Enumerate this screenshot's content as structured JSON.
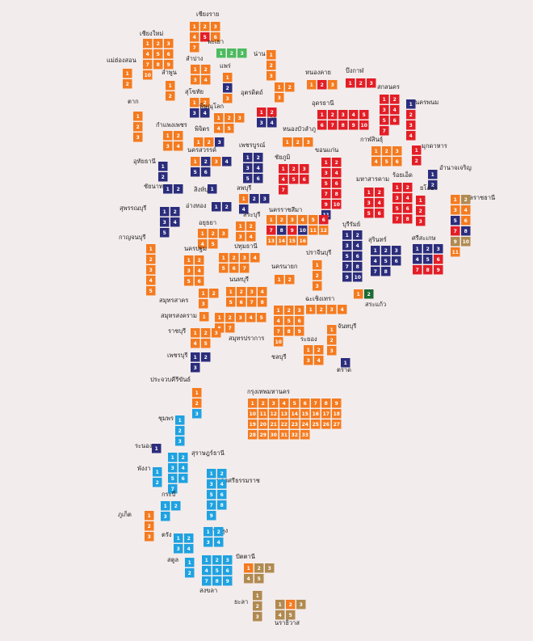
{
  "provinces": [
    {
      "name": "เชียงราย",
      "seats": [
        1,
        2,
        3,
        4,
        5,
        6,
        7
      ],
      "colors": [
        "#f47b20",
        "#f47b20",
        "#f47b20",
        "#f47b20",
        "#e31e26",
        "#f47b20",
        "#f47b20"
      ]
    },
    {
      "name": "พะเยา",
      "seats": [
        1,
        2,
        3
      ],
      "colors": [
        "#4cbb5f",
        "#4cbb5f",
        "#4cbb5f"
      ]
    },
    {
      "name": "น่าน",
      "seats": [
        1,
        2,
        3
      ],
      "colors": [
        "#f47b20",
        "#f47b20",
        "#f47b20"
      ]
    },
    {
      "name": "เชียงใหม่",
      "seats": [
        1,
        2,
        3,
        4,
        5,
        6,
        7,
        8,
        9,
        10
      ],
      "colors": [
        "#f47b20",
        "#f47b20",
        "#f47b20",
        "#f47b20",
        "#f47b20",
        "#f47b20",
        "#f47b20",
        "#f47b20",
        "#f47b20",
        "#f47b20"
      ]
    },
    {
      "name": "แม่ฮ่องสอน",
      "seats": [
        1,
        2
      ],
      "colors": [
        "#f47b20",
        "#f47b20"
      ]
    },
    {
      "name": "ลำพูน",
      "seats": [
        1,
        2
      ],
      "colors": [
        "#f47b20",
        "#f47b20"
      ]
    },
    {
      "name": "ลำปาง",
      "seats": [
        1,
        2,
        3,
        4
      ],
      "colors": [
        "#f47b20",
        "#f47b20",
        "#f47b20",
        "#f47b20"
      ]
    },
    {
      "name": "แพร่",
      "seats": [
        1,
        2,
        3
      ],
      "colors": [
        "#f47b20",
        "#2b2d7c",
        "#f47b20"
      ]
    },
    {
      "name": "สุโขทัย",
      "seats": [
        1,
        2,
        3,
        4
      ],
      "colors": [
        "#f47b20",
        "#f47b20",
        "#2b2d7c",
        "#2b2d7c"
      ]
    },
    {
      "name": "อุตรดิตถ์",
      "seats": [
        1,
        2,
        3
      ],
      "colors": [
        "#f47b20",
        "#f47b20",
        "#f47b20"
      ]
    },
    {
      "name": "ตาก",
      "seats": [
        1,
        2,
        3
      ],
      "colors": [
        "#f47b20",
        "#f47b20",
        "#f47b20"
      ]
    },
    {
      "name": "พิษณุโลก",
      "seats": [
        1,
        2,
        3,
        4,
        5
      ],
      "colors": [
        "#f47b20",
        "#f47b20",
        "#f47b20",
        "#f47b20",
        "#f47b20"
      ]
    },
    {
      "name": "เลย",
      "seats": [
        1,
        2,
        3,
        4
      ],
      "colors": [
        "#e31e26",
        "#e31e26",
        "#2b2d7c",
        "#2b2d7c"
      ]
    },
    {
      "name": "กำแพงเพชร",
      "seats": [
        1,
        2,
        3,
        4
      ],
      "colors": [
        "#f47b20",
        "#f47b20",
        "#f47b20",
        "#f47b20"
      ]
    },
    {
      "name": "พิจิตร",
      "seats": [
        1,
        2,
        3
      ],
      "colors": [
        "#f47b20",
        "#f47b20",
        "#2b2d7c"
      ]
    },
    {
      "name": "หนองคาย",
      "seats": [
        1,
        2,
        3
      ],
      "colors": [
        "#f47b20",
        "#e31e26",
        "#f47b20"
      ]
    },
    {
      "name": "บึงกาฬ",
      "seats": [
        1,
        2,
        3
      ],
      "colors": [
        "#e31e26",
        "#e31e26",
        "#e31e26"
      ]
    },
    {
      "name": "อุดรธานี",
      "seats": [
        1,
        2,
        3,
        4,
        5,
        6,
        7,
        8,
        9,
        10
      ],
      "colors": [
        "#e31e26",
        "#e31e26",
        "#e31e26",
        "#e31e26",
        "#e31e26",
        "#e31e26",
        "#e31e26",
        "#e31e26",
        "#e31e26",
        "#e31e26"
      ]
    },
    {
      "name": "สกลนคร",
      "seats": [
        1,
        2,
        3,
        4,
        5,
        6,
        7
      ],
      "colors": [
        "#e31e26",
        "#e31e26",
        "#e31e26",
        "#e31e26",
        "#e31e26",
        "#e31e26",
        "#e31e26"
      ]
    },
    {
      "name": "นครพนม",
      "seats": [
        1,
        2,
        3,
        4
      ],
      "colors": [
        "#2b2d7c",
        "#e31e26",
        "#e31e26",
        "#e31e26"
      ]
    },
    {
      "name": "หนองบัวลำภู",
      "seats": [
        1,
        2,
        3
      ],
      "colors": [
        "#f47b20",
        "#f47b20",
        "#f47b20"
      ]
    },
    {
      "name": "เพชรบูรณ์",
      "seats": [
        1,
        2,
        3,
        4,
        5,
        6
      ],
      "colors": [
        "#2b2d7c",
        "#2b2d7c",
        "#2b2d7c",
        "#2b2d7c",
        "#2b2d7c",
        "#2b2d7c"
      ]
    },
    {
      "name": "ชัยภูมิ",
      "seats": [
        1,
        2,
        3,
        4,
        5,
        6,
        7
      ],
      "colors": [
        "#e31e26",
        "#e31e26",
        "#e31e26",
        "#e31e26",
        "#e31e26",
        "#e31e26",
        "#e31e26"
      ]
    },
    {
      "name": "ขอนแก่น",
      "seats": [
        1,
        2,
        3,
        4,
        5,
        6,
        7,
        8,
        9,
        10,
        11
      ],
      "colors": [
        "#e31e26",
        "#e31e26",
        "#e31e26",
        "#e31e26",
        "#e31e26",
        "#e31e26",
        "#e31e26",
        "#e31e26",
        "#e31e26",
        "#e31e26",
        "#2b2d7c"
      ]
    },
    {
      "name": "กาฬสินธุ์",
      "seats": [
        1,
        2,
        3,
        4,
        5,
        6
      ],
      "colors": [
        "#f47b20",
        "#f47b20",
        "#f47b20",
        "#f47b20",
        "#f47b20",
        "#f47b20"
      ]
    },
    {
      "name": "มุกดาหาร",
      "seats": [
        1,
        2
      ],
      "colors": [
        "#e31e26",
        "#e31e26"
      ]
    },
    {
      "name": "อำนาจเจริญ",
      "seats": [
        1,
        2
      ],
      "colors": [
        "#2b2d7c",
        "#2b2d7c"
      ]
    },
    {
      "name": "ร้อยเอ็ด",
      "seats": [
        1,
        2,
        3,
        4,
        5,
        6,
        7,
        8
      ],
      "colors": [
        "#e31e26",
        "#e31e26",
        "#e31e26",
        "#e31e26",
        "#e31e26",
        "#e31e26",
        "#e31e26",
        "#e31e26"
      ]
    },
    {
      "name": "มหาสารคาม",
      "seats": [
        1,
        2,
        3,
        4,
        5,
        6
      ],
      "colors": [
        "#e31e26",
        "#e31e26",
        "#e31e26",
        "#e31e26",
        "#e31e26",
        "#e31e26"
      ]
    },
    {
      "name": "ยโสธร",
      "seats": [
        1,
        2,
        3
      ],
      "colors": [
        "#e31e26",
        "#e31e26",
        "#e31e26"
      ]
    },
    {
      "name": "อุบลราชธานี",
      "seats": [
        1,
        2,
        3,
        4,
        5,
        6,
        7,
        8,
        9,
        10,
        11
      ],
      "colors": [
        "#f47b20",
        "#b08a50",
        "#f47b20",
        "#f47b20",
        "#2b2d7c",
        "#f47b20",
        "#e31e26",
        "#2b2d7c",
        "#b08a50",
        "#b08a50",
        "#f47b20"
      ]
    },
    {
      "name": "อุทัยธานี",
      "seats": [
        1,
        2
      ],
      "colors": [
        "#2b2d7c",
        "#2b2d7c"
      ]
    },
    {
      "name": "นครสวรรค์",
      "seats": [
        1,
        2,
        3,
        4,
        5,
        6
      ],
      "colors": [
        "#f47b20",
        "#2b2d7c",
        "#f47b20",
        "#2b2d7c",
        "#2b2d7c",
        "#2b2d7c"
      ]
    },
    {
      "name": "ชัยนาท",
      "seats": [
        1,
        2
      ],
      "colors": [
        "#2b2d7c",
        "#2b2d7c"
      ]
    },
    {
      "name": "สิงห์บุรี",
      "seats": [
        1
      ],
      "colors": [
        "#2b2d7c"
      ]
    },
    {
      "name": "ลพบุรี",
      "seats": [
        1,
        2,
        3,
        4
      ],
      "colors": [
        "#f47b20",
        "#2b2d7c",
        "#2b2d7c",
        "#2b2d7c"
      ]
    },
    {
      "name": "อ่างทอง",
      "seats": [
        1,
        2
      ],
      "colors": [
        "#2b2d7c",
        "#2b2d7c"
      ]
    },
    {
      "name": "สุพรรณบุรี",
      "seats": [
        1,
        2,
        3,
        4,
        5
      ],
      "colors": [
        "#2b2d7c",
        "#2b2d7c",
        "#2b2d7c",
        "#2b2d7c",
        "#2b2d7c"
      ]
    },
    {
      "name": "กาญจนบุรี",
      "seats": [
        1,
        2,
        3,
        4,
        5
      ],
      "colors": [
        "#f47b20",
        "#f47b20",
        "#f47b20",
        "#f47b20",
        "#f47b20"
      ]
    },
    {
      "name": "อยุธยา",
      "seats": [
        1,
        2,
        3,
        4,
        5
      ],
      "colors": [
        "#f47b20",
        "#f47b20",
        "#f47b20",
        "#f47b20",
        "#f47b20"
      ]
    },
    {
      "name": "สระบุรี",
      "seats": [
        1,
        2,
        3,
        4
      ],
      "colors": [
        "#f47b20",
        "#f47b20",
        "#f47b20",
        "#f47b20"
      ]
    },
    {
      "name": "นครราชสีมา",
      "seats": [
        1,
        2,
        3,
        4,
        5,
        6,
        7,
        8,
        9,
        10,
        11,
        12,
        13,
        14,
        15,
        16
      ],
      "colors": [
        "#f47b20",
        "#f47b20",
        "#f47b20",
        "#f47b20",
        "#f47b20",
        "#e31e26",
        "#e31e26",
        "#2b2d7c",
        "#e31e26",
        "#2b2d7c",
        "#f47b20",
        "#f47b20",
        "#f47b20",
        "#f47b20",
        "#f47b20",
        "#f47b20"
      ]
    },
    {
      "name": "บุรีรัมย์",
      "seats": [
        1,
        2,
        3,
        4,
        5,
        6,
        7,
        8,
        9,
        10
      ],
      "colors": [
        "#2b2d7c",
        "#2b2d7c",
        "#2b2d7c",
        "#2b2d7c",
        "#2b2d7c",
        "#2b2d7c",
        "#2b2d7c",
        "#2b2d7c",
        "#2b2d7c",
        "#2b2d7c"
      ]
    },
    {
      "name": "สุรินทร์",
      "seats": [
        1,
        2,
        3,
        4,
        5,
        6,
        7,
        8
      ],
      "colors": [
        "#2b2d7c",
        "#2b2d7c",
        "#2b2d7c",
        "#2b2d7c",
        "#2b2d7c",
        "#2b2d7c",
        "#2b2d7c",
        "#2b2d7c"
      ]
    },
    {
      "name": "ศรีสะเกษ",
      "seats": [
        1,
        2,
        3,
        4,
        5,
        6,
        7,
        8,
        9
      ],
      "colors": [
        "#2b2d7c",
        "#2b2d7c",
        "#2b2d7c",
        "#2b2d7c",
        "#2b2d7c",
        "#e31e26",
        "#e31e26",
        "#e31e26",
        "#e31e26"
      ]
    },
    {
      "name": "นครปฐม",
      "seats": [
        1,
        2,
        3,
        4,
        5,
        6
      ],
      "colors": [
        "#f47b20",
        "#f47b20",
        "#f47b20",
        "#f47b20",
        "#f47b20",
        "#f47b20"
      ]
    },
    {
      "name": "ปทุมธานี",
      "seats": [
        1,
        2,
        3,
        4,
        5,
        6,
        7
      ],
      "colors": [
        "#f47b20",
        "#f47b20",
        "#f47b20",
        "#f47b20",
        "#f47b20",
        "#f47b20",
        "#f47b20"
      ]
    },
    {
      "name": "นนทบุรี",
      "seats": [
        1,
        2,
        3,
        4,
        5,
        6,
        7,
        8
      ],
      "colors": [
        "#f47b20",
        "#f47b20",
        "#f47b20",
        "#f47b20",
        "#f47b20",
        "#f47b20",
        "#f47b20",
        "#f47b20"
      ]
    },
    {
      "name": "นครนายก",
      "seats": [
        1,
        2
      ],
      "colors": [
        "#f47b20",
        "#f47b20"
      ]
    },
    {
      "name": "ปราจีนบุรี",
      "seats": [
        1,
        2,
        3
      ],
      "colors": [
        "#f47b20",
        "#f47b20",
        "#f47b20"
      ]
    },
    {
      "name": "สระแก้ว",
      "seats": [
        1,
        2
      ],
      "colors": [
        "#f47b20",
        "#1d6b35"
      ]
    },
    {
      "name": "สมุทรสาคร",
      "seats": [
        1,
        2,
        3
      ],
      "colors": [
        "#f47b20",
        "#f47b20",
        "#f47b20"
      ]
    },
    {
      "name": "สมุทรสงคราม",
      "seats": [
        1
      ],
      "colors": [
        "#f47b20"
      ]
    },
    {
      "name": "สมุทรปราการ",
      "seats": [
        1,
        2,
        3,
        4,
        5,
        6,
        7
      ],
      "colors": [
        "#f47b20",
        "#f47b20",
        "#f47b20",
        "#f47b20",
        "#f47b20",
        "#f47b20",
        "#f47b20"
      ]
    },
    {
      "name": "ฉะเชิงเทรา",
      "seats": [
        1,
        2,
        3,
        4
      ],
      "colors": [
        "#f47b20",
        "#f47b20",
        "#f47b20",
        "#f47b20"
      ]
    },
    {
      "name": "ชลบุรี",
      "seats": [
        1,
        2,
        3,
        4,
        5,
        6,
        7,
        8,
        9,
        10
      ],
      "colors": [
        "#f47b20",
        "#f47b20",
        "#f47b20",
        "#f47b20",
        "#f47b20",
        "#f47b20",
        "#f47b20",
        "#f47b20",
        "#f47b20",
        "#f47b20"
      ]
    },
    {
      "name": "ราชบุรี",
      "seats": [
        1,
        2,
        3,
        4,
        5
      ],
      "colors": [
        "#f47b20",
        "#f47b20",
        "#f47b20",
        "#f47b20",
        "#f47b20"
      ]
    },
    {
      "name": "ระยอง",
      "seats": [
        1,
        2,
        3,
        4
      ],
      "colors": [
        "#f47b20",
        "#f47b20",
        "#f47b20",
        "#f47b20"
      ]
    },
    {
      "name": "จันทบุรี",
      "seats": [
        1,
        2,
        3
      ],
      "colors": [
        "#f47b20",
        "#f47b20",
        "#f47b20"
      ]
    },
    {
      "name": "ตราด",
      "seats": [
        1
      ],
      "colors": [
        "#2b2d7c"
      ]
    },
    {
      "name": "เพชรบุรี",
      "seats": [
        1,
        2,
        3
      ],
      "colors": [
        "#2b2d7c",
        "#2b2d7c",
        "#2b2d7c"
      ]
    },
    {
      "name": "ประจวบคีรีขันธ์",
      "seats": [
        1,
        2,
        3
      ],
      "colors": [
        "#f47b20",
        "#f47b20",
        "#1fa2e1"
      ]
    },
    {
      "name": "ชุมพร",
      "seats": [
        1,
        2,
        3
      ],
      "colors": [
        "#1fa2e1",
        "#1fa2e1",
        "#1fa2e1"
      ]
    },
    {
      "name": "ระนอง",
      "seats": [
        1
      ],
      "colors": [
        "#2b2d7c"
      ]
    },
    {
      "name": "สุราษฎร์ธานี",
      "seats": [
        1,
        2,
        3,
        4,
        5,
        6,
        7
      ],
      "colors": [
        "#1fa2e1",
        "#1fa2e1",
        "#1fa2e1",
        "#1fa2e1",
        "#1fa2e1",
        "#1fa2e1",
        "#1fa2e1"
      ]
    },
    {
      "name": "พังงา",
      "seats": [
        1,
        2
      ],
      "colors": [
        "#1fa2e1",
        "#1fa2e1"
      ]
    },
    {
      "name": "นครศรีธรรมราช",
      "seats": [
        1,
        2,
        3,
        4,
        5,
        6,
        7,
        8,
        9
      ],
      "colors": [
        "#1fa2e1",
        "#1fa2e1",
        "#1fa2e1",
        "#1fa2e1",
        "#1fa2e1",
        "#1fa2e1",
        "#1fa2e1",
        "#1fa2e1",
        "#1fa2e1"
      ]
    },
    {
      "name": "กระบี่",
      "seats": [
        1,
        2,
        3
      ],
      "colors": [
        "#1fa2e1",
        "#1fa2e1",
        "#1fa2e1"
      ]
    },
    {
      "name": "ภูเก็ต",
      "seats": [
        1,
        2,
        3
      ],
      "colors": [
        "#f47b20",
        "#f47b20",
        "#f47b20"
      ]
    },
    {
      "name": "ตรัง",
      "seats": [
        1,
        2,
        3,
        4
      ],
      "colors": [
        "#1fa2e1",
        "#1fa2e1",
        "#1fa2e1",
        "#1fa2e1"
      ]
    },
    {
      "name": "พัทลุง",
      "seats": [
        1,
        2,
        3,
        4
      ],
      "colors": [
        "#1fa2e1",
        "#1fa2e1",
        "#1fa2e1",
        "#1fa2e1"
      ]
    },
    {
      "name": "สตูล",
      "seats": [
        1,
        2
      ],
      "colors": [
        "#1fa2e1",
        "#1fa2e1"
      ]
    },
    {
      "name": "สงขลา",
      "seats": [
        1,
        2,
        3,
        4,
        5,
        6,
        7,
        8,
        9
      ],
      "colors": [
        "#1fa2e1",
        "#1fa2e1",
        "#1fa2e1",
        "#1fa2e1",
        "#1fa2e1",
        "#1fa2e1",
        "#1fa2e1",
        "#1fa2e1",
        "#1fa2e1"
      ]
    },
    {
      "name": "ปัตตานี",
      "seats": [
        1,
        2,
        3,
        4,
        5
      ],
      "colors": [
        "#f47b20",
        "#b08a50",
        "#b08a50",
        "#b08a50",
        "#b08a50"
      ]
    },
    {
      "name": "ยะลา",
      "seats": [
        1,
        2,
        3
      ],
      "colors": [
        "#b08a50",
        "#b08a50",
        "#b08a50"
      ]
    },
    {
      "name": "นราธิวาส",
      "seats": [
        1,
        2,
        3,
        4,
        5
      ],
      "colors": [
        "#b08a50",
        "#f47b20",
        "#b08a50",
        "#b08a50",
        "#b08a50"
      ]
    },
    {
      "name": "กรุงเทพมหานคร",
      "seats": [
        1,
        2,
        3,
        4,
        5,
        6,
        7,
        8,
        9,
        10,
        11,
        12,
        13,
        14,
        15,
        16,
        17,
        18,
        19,
        20,
        21,
        22,
        23,
        24,
        25,
        26,
        27,
        28,
        29,
        30,
        31,
        32,
        33
      ],
      "colors": [
        "#f47b20",
        "#f47b20",
        "#f47b20",
        "#f47b20",
        "#f47b20",
        "#f47b20",
        "#f47b20",
        "#f47b20",
        "#f47b20",
        "#f47b20",
        "#f47b20",
        "#f47b20",
        "#f47b20",
        "#f47b20",
        "#f47b20",
        "#f47b20",
        "#f47b20",
        "#f47b20",
        "#f47b20",
        "#f47b20",
        "#f47b20",
        "#f47b20",
        "#f47b20",
        "#f47b20",
        "#f47b20",
        "#f47b20",
        "#f47b20",
        "#f47b20",
        "#f47b20",
        "#f47b20",
        "#f47b20",
        "#f47b20",
        "#f47b20"
      ]
    }
  ]
}
